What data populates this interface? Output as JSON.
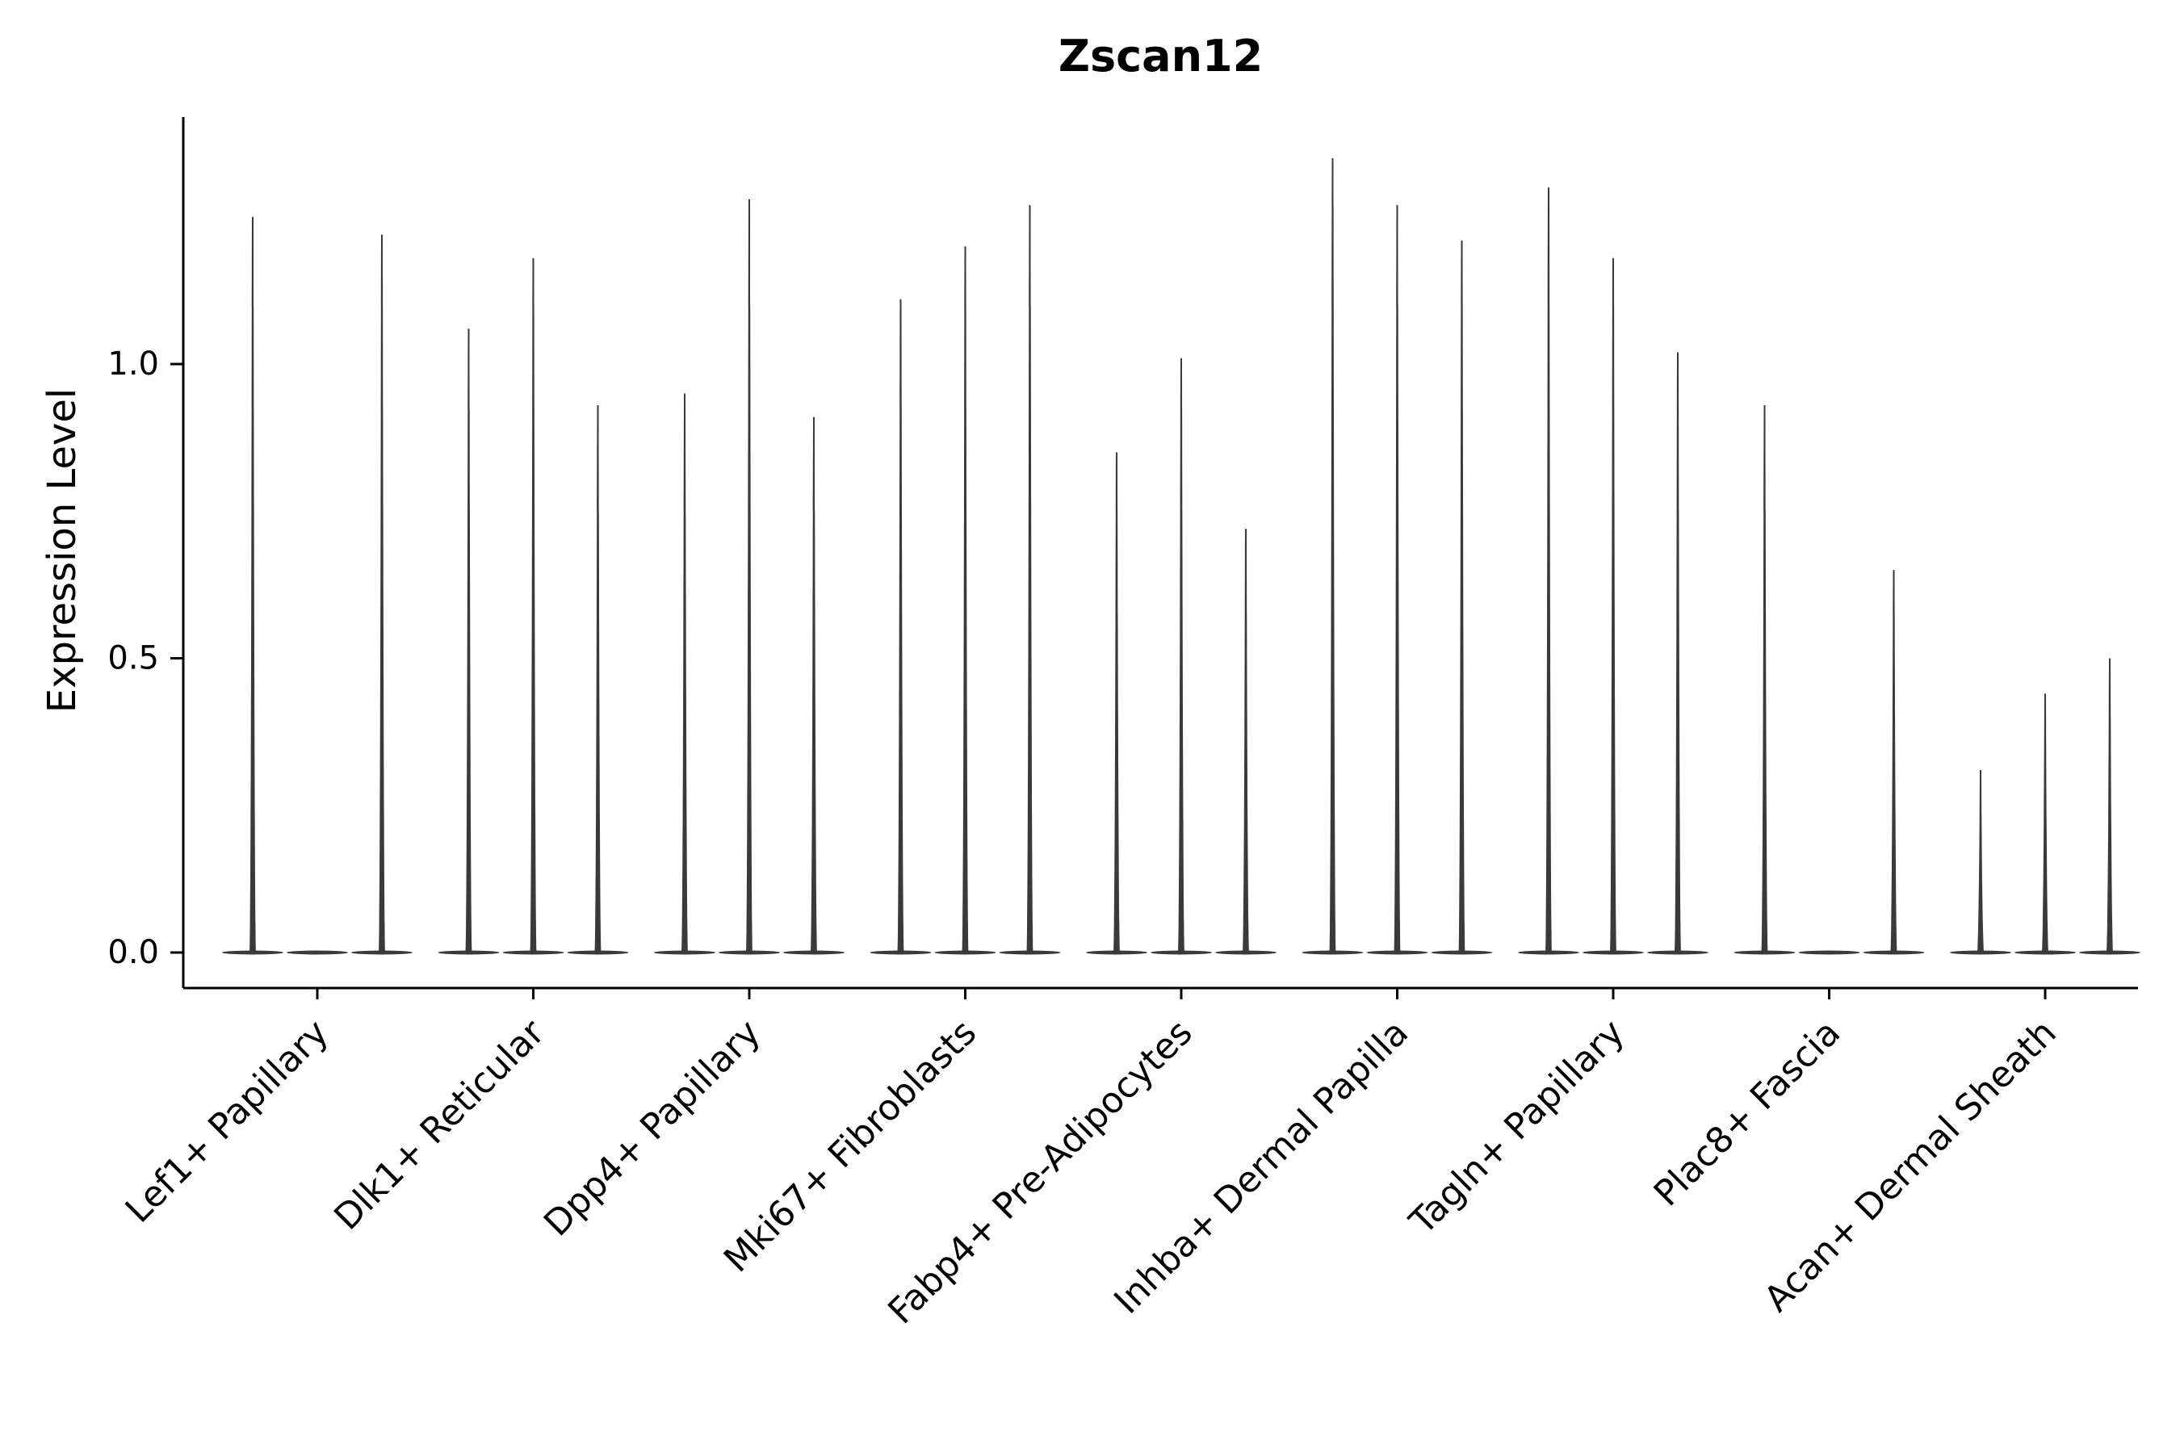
{
  "figure": {
    "title": "Zscan12",
    "ylabel": "Expression Level"
  },
  "chart_data": {
    "type": "violin",
    "title": "Zscan12",
    "xlabel": "",
    "ylabel": "Expression Level",
    "ylim": [
      -0.06,
      1.42
    ],
    "ytick_labels": [
      "0.0",
      "0.5",
      "1.0"
    ],
    "ytick_values": [
      0.0,
      0.5,
      1.0
    ],
    "grid": false,
    "legend_position": "none",
    "violin_color": "#3a3a3a",
    "violins_per_category": 3,
    "description": "Sparse single-cell expression violins: each category shows three very thin violins; 'peaks' lists the maximum expression level reached by each violin (0 = flat violin at zero expression).",
    "categories": [
      "Lef1+ Papillary",
      "Dlk1+ Reticular",
      "Dpp4+ Papillary",
      "Mki67+ Fibroblasts",
      "Fabp4+ Pre-Adipocytes",
      "Inhba+ Dermal Papilla",
      "Tagln+ Papillary",
      "Plac8+ Fascia",
      "Acan+ Dermal Sheath"
    ],
    "series": [
      {
        "category": "Lef1+ Papillary",
        "peaks": [
          1.25,
          0.0,
          1.22
        ]
      },
      {
        "category": "Dlk1+ Reticular",
        "peaks": [
          1.06,
          1.18,
          0.93
        ]
      },
      {
        "category": "Dpp4+ Papillary",
        "peaks": [
          0.95,
          1.28,
          0.91
        ]
      },
      {
        "category": "Mki67+ Fibroblasts",
        "peaks": [
          1.11,
          1.2,
          1.27
        ]
      },
      {
        "category": "Fabp4+ Pre-Adipocytes",
        "peaks": [
          0.85,
          1.01,
          0.72
        ]
      },
      {
        "category": "Inhba+ Dermal Papilla",
        "peaks": [
          1.35,
          1.27,
          1.21
        ]
      },
      {
        "category": "Tagln+ Papillary",
        "peaks": [
          1.3,
          1.18,
          1.02
        ]
      },
      {
        "category": "Plac8+ Fascia",
        "peaks": [
          0.93,
          0.0,
          0.65
        ]
      },
      {
        "category": "Acan+ Dermal Sheath",
        "peaks": [
          0.31,
          0.44,
          0.5
        ]
      }
    ]
  }
}
